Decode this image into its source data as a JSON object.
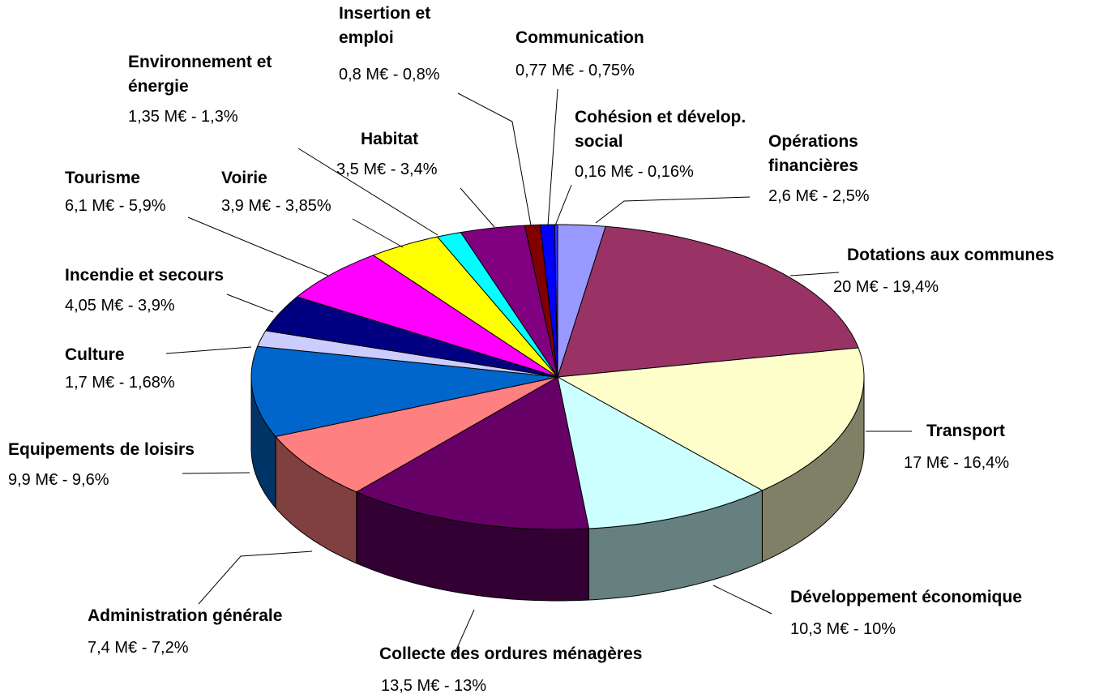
{
  "chart_data": {
    "type": "pie",
    "categories": [
      "Opérations financières",
      "Dotations aux communes",
      "Transport",
      "Développement économique",
      "Collecte des ordures ménagères",
      "Administration générale",
      "Equipements de loisirs",
      "Culture",
      "Incendie et secours",
      "Tourisme",
      "Voirie",
      "Environnement et énergie",
      "Habitat",
      "Insertion et emploi",
      "Communication",
      "Cohésion et dévelop. social"
    ],
    "values": [
      2.5,
      19.4,
      16.4,
      10,
      13,
      7.2,
      9.6,
      1.68,
      3.9,
      5.9,
      3.85,
      1.3,
      3.4,
      0.8,
      0.75,
      0.16
    ],
    "value_labels": [
      "2,6 M€ - 2,5%",
      "20 M€ - 19,4%",
      "17 M€ - 16,4%",
      "10,3 M€ - 10%",
      "13,5 M€ - 13%",
      "7,4 M€ - 7,2%",
      "9,9 M€ - 9,6%",
      "1,7 M€ - 1,68%",
      "4,05 M€ - 3,9%",
      "6,1 M€ - 5,9%",
      "3,9 M€ - 3,85%",
      "1,35 M€ - 1,3%",
      "3,5 M€ - 3,4%",
      "0,8 M€ - 0,8%",
      "0,77 M€ - 0,75%",
      "0,16 M€ - 0,16%"
    ],
    "colors": [
      "#9999ff",
      "#993366",
      "#ffffcc",
      "#ccffff",
      "#660066",
      "#ff8080",
      "#0066cc",
      "#ccccff",
      "#000080",
      "#ff00ff",
      "#ffff00",
      "#00ffff",
      "#800080",
      "#800000",
      "#0000ff",
      "#3333ff"
    ]
  }
}
